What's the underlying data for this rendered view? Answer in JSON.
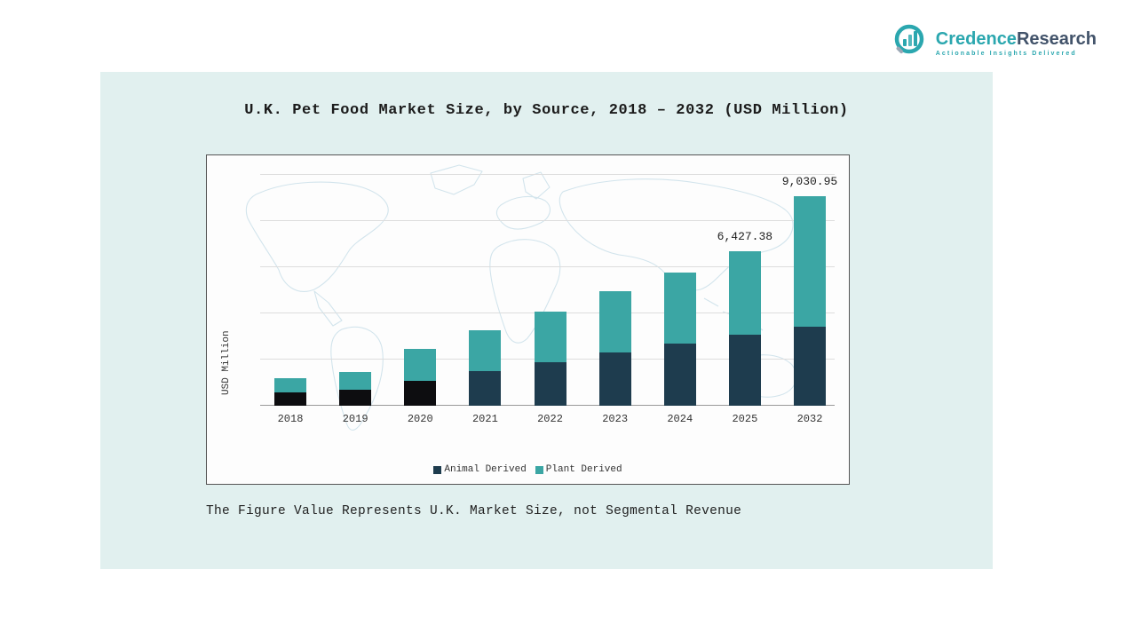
{
  "brand": {
    "word1": "Credence",
    "word2": "Research",
    "tagline": "Actionable Insights Delivered",
    "accent": "#2BA7AF",
    "text_color": "#42536A"
  },
  "chart_data": {
    "type": "bar",
    "stacked": true,
    "title": "U.K. Pet Food Market Size, by Source, 2018 – 2032 (USD Million)",
    "ylabel": "USD Million",
    "footnote": "The Figure Value Represents U.K. Market Size, not Segmental Revenue",
    "categories": [
      "2018",
      "2019",
      "2020",
      "2021",
      "2022",
      "2023",
      "2024",
      "2025",
      "2032"
    ],
    "series": [
      {
        "name": "Animal Derived",
        "color": "#1E3C4E",
        "colors": [
          "#0D0D10",
          "#0D0D10",
          "#0D0D10",
          "#1E3C4E",
          "#1E3C4E",
          "#1E3C4E",
          "#1E3C4E",
          "#1E3C4E",
          "#1E3C4E"
        ],
        "values": [
          570,
          680,
          1050,
          1450,
          1800,
          2200,
          2600,
          2950,
          3400
        ]
      },
      {
        "name": "Plant Derived",
        "color": "#3BA6A4",
        "values": [
          580,
          720,
          1300,
          1700,
          2100,
          2550,
          2950,
          3477.38,
          5630.95
        ]
      }
    ],
    "totals": [
      1150,
      1400,
      2350,
      3150,
      3900,
      4750,
      5550,
      6427.38,
      9030.95
    ],
    "annotations": [
      {
        "category": "2025",
        "text": "6,427.38"
      },
      {
        "category": "2032",
        "text": "9,030.95"
      }
    ],
    "ylim": [
      0,
      9600
    ],
    "gridline_count": 5,
    "legend_position": "bottom",
    "grid": true,
    "colors": {
      "panel_bg": "#E1F0EF",
      "plot_bg": "#FDFDFD",
      "map_line": "#CBE0EA",
      "gridline": "#DDDDDD",
      "axis_line": "#999999"
    }
  }
}
